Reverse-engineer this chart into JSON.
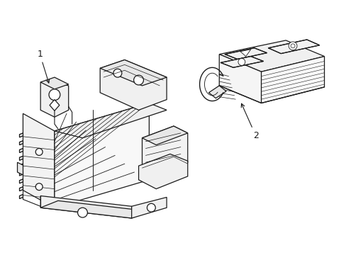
{
  "background_color": "#ffffff",
  "line_color": "#1a1a1a",
  "line_width": 0.9,
  "label1_text": "1",
  "label2_text": "2",
  "figsize": [
    4.89,
    3.6
  ],
  "dpi": 100
}
